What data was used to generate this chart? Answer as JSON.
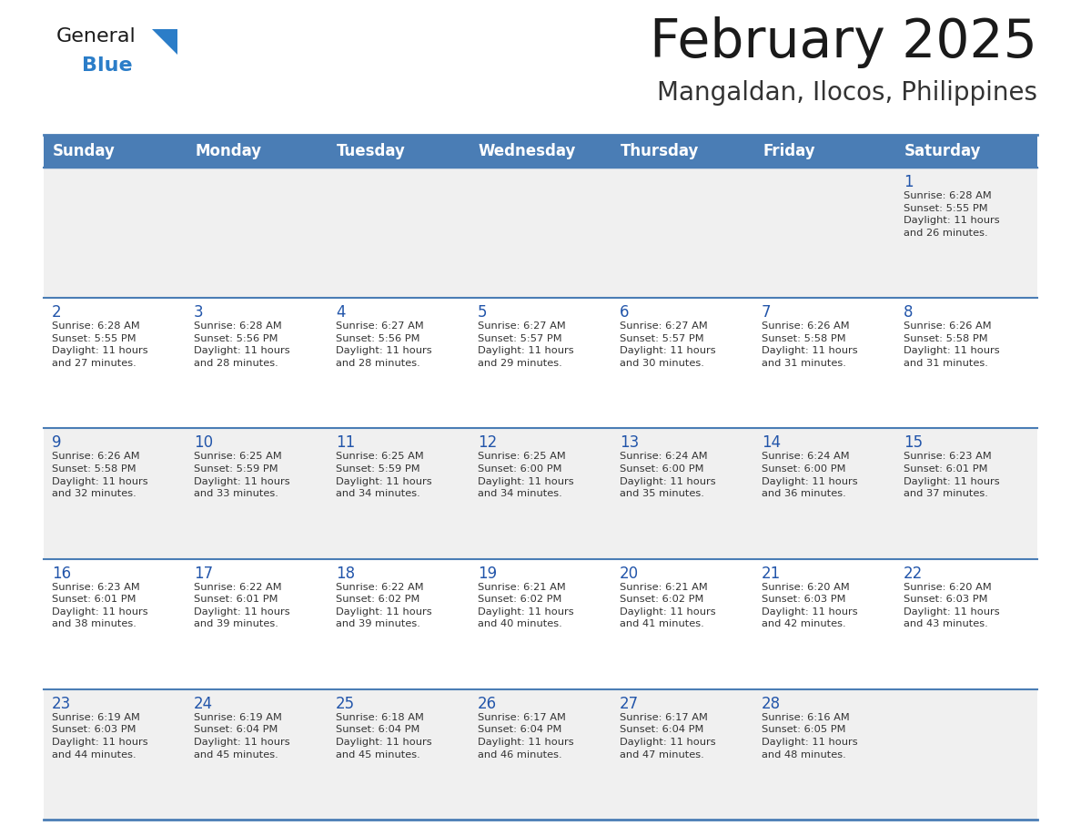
{
  "title": "February 2025",
  "subtitle": "Mangaldan, Ilocos, Philippines",
  "days_of_week": [
    "Sunday",
    "Monday",
    "Tuesday",
    "Wednesday",
    "Thursday",
    "Friday",
    "Saturday"
  ],
  "header_bg": "#4a7db5",
  "header_text": "#ffffff",
  "row_bg_odd": "#f0f0f0",
  "row_bg_even": "#ffffff",
  "day_text_color": "#2255aa",
  "info_text_color": "#333333",
  "border_color": "#4a7db5",
  "title_color": "#1a1a1a",
  "subtitle_color": "#333333",
  "logo_general_color": "#1a1a1a",
  "logo_blue_color": "#2b7dc8",
  "weeks": [
    [
      {
        "day": null,
        "info": ""
      },
      {
        "day": null,
        "info": ""
      },
      {
        "day": null,
        "info": ""
      },
      {
        "day": null,
        "info": ""
      },
      {
        "day": null,
        "info": ""
      },
      {
        "day": null,
        "info": ""
      },
      {
        "day": 1,
        "info": "Sunrise: 6:28 AM\nSunset: 5:55 PM\nDaylight: 11 hours\nand 26 minutes."
      }
    ],
    [
      {
        "day": 2,
        "info": "Sunrise: 6:28 AM\nSunset: 5:55 PM\nDaylight: 11 hours\nand 27 minutes."
      },
      {
        "day": 3,
        "info": "Sunrise: 6:28 AM\nSunset: 5:56 PM\nDaylight: 11 hours\nand 28 minutes."
      },
      {
        "day": 4,
        "info": "Sunrise: 6:27 AM\nSunset: 5:56 PM\nDaylight: 11 hours\nand 28 minutes."
      },
      {
        "day": 5,
        "info": "Sunrise: 6:27 AM\nSunset: 5:57 PM\nDaylight: 11 hours\nand 29 minutes."
      },
      {
        "day": 6,
        "info": "Sunrise: 6:27 AM\nSunset: 5:57 PM\nDaylight: 11 hours\nand 30 minutes."
      },
      {
        "day": 7,
        "info": "Sunrise: 6:26 AM\nSunset: 5:58 PM\nDaylight: 11 hours\nand 31 minutes."
      },
      {
        "day": 8,
        "info": "Sunrise: 6:26 AM\nSunset: 5:58 PM\nDaylight: 11 hours\nand 31 minutes."
      }
    ],
    [
      {
        "day": 9,
        "info": "Sunrise: 6:26 AM\nSunset: 5:58 PM\nDaylight: 11 hours\nand 32 minutes."
      },
      {
        "day": 10,
        "info": "Sunrise: 6:25 AM\nSunset: 5:59 PM\nDaylight: 11 hours\nand 33 minutes."
      },
      {
        "day": 11,
        "info": "Sunrise: 6:25 AM\nSunset: 5:59 PM\nDaylight: 11 hours\nand 34 minutes."
      },
      {
        "day": 12,
        "info": "Sunrise: 6:25 AM\nSunset: 6:00 PM\nDaylight: 11 hours\nand 34 minutes."
      },
      {
        "day": 13,
        "info": "Sunrise: 6:24 AM\nSunset: 6:00 PM\nDaylight: 11 hours\nand 35 minutes."
      },
      {
        "day": 14,
        "info": "Sunrise: 6:24 AM\nSunset: 6:00 PM\nDaylight: 11 hours\nand 36 minutes."
      },
      {
        "day": 15,
        "info": "Sunrise: 6:23 AM\nSunset: 6:01 PM\nDaylight: 11 hours\nand 37 minutes."
      }
    ],
    [
      {
        "day": 16,
        "info": "Sunrise: 6:23 AM\nSunset: 6:01 PM\nDaylight: 11 hours\nand 38 minutes."
      },
      {
        "day": 17,
        "info": "Sunrise: 6:22 AM\nSunset: 6:01 PM\nDaylight: 11 hours\nand 39 minutes."
      },
      {
        "day": 18,
        "info": "Sunrise: 6:22 AM\nSunset: 6:02 PM\nDaylight: 11 hours\nand 39 minutes."
      },
      {
        "day": 19,
        "info": "Sunrise: 6:21 AM\nSunset: 6:02 PM\nDaylight: 11 hours\nand 40 minutes."
      },
      {
        "day": 20,
        "info": "Sunrise: 6:21 AM\nSunset: 6:02 PM\nDaylight: 11 hours\nand 41 minutes."
      },
      {
        "day": 21,
        "info": "Sunrise: 6:20 AM\nSunset: 6:03 PM\nDaylight: 11 hours\nand 42 minutes."
      },
      {
        "day": 22,
        "info": "Sunrise: 6:20 AM\nSunset: 6:03 PM\nDaylight: 11 hours\nand 43 minutes."
      }
    ],
    [
      {
        "day": 23,
        "info": "Sunrise: 6:19 AM\nSunset: 6:03 PM\nDaylight: 11 hours\nand 44 minutes."
      },
      {
        "day": 24,
        "info": "Sunrise: 6:19 AM\nSunset: 6:04 PM\nDaylight: 11 hours\nand 45 minutes."
      },
      {
        "day": 25,
        "info": "Sunrise: 6:18 AM\nSunset: 6:04 PM\nDaylight: 11 hours\nand 45 minutes."
      },
      {
        "day": 26,
        "info": "Sunrise: 6:17 AM\nSunset: 6:04 PM\nDaylight: 11 hours\nand 46 minutes."
      },
      {
        "day": 27,
        "info": "Sunrise: 6:17 AM\nSunset: 6:04 PM\nDaylight: 11 hours\nand 47 minutes."
      },
      {
        "day": 28,
        "info": "Sunrise: 6:16 AM\nSunset: 6:05 PM\nDaylight: 11 hours\nand 48 minutes."
      },
      {
        "day": null,
        "info": ""
      }
    ]
  ]
}
